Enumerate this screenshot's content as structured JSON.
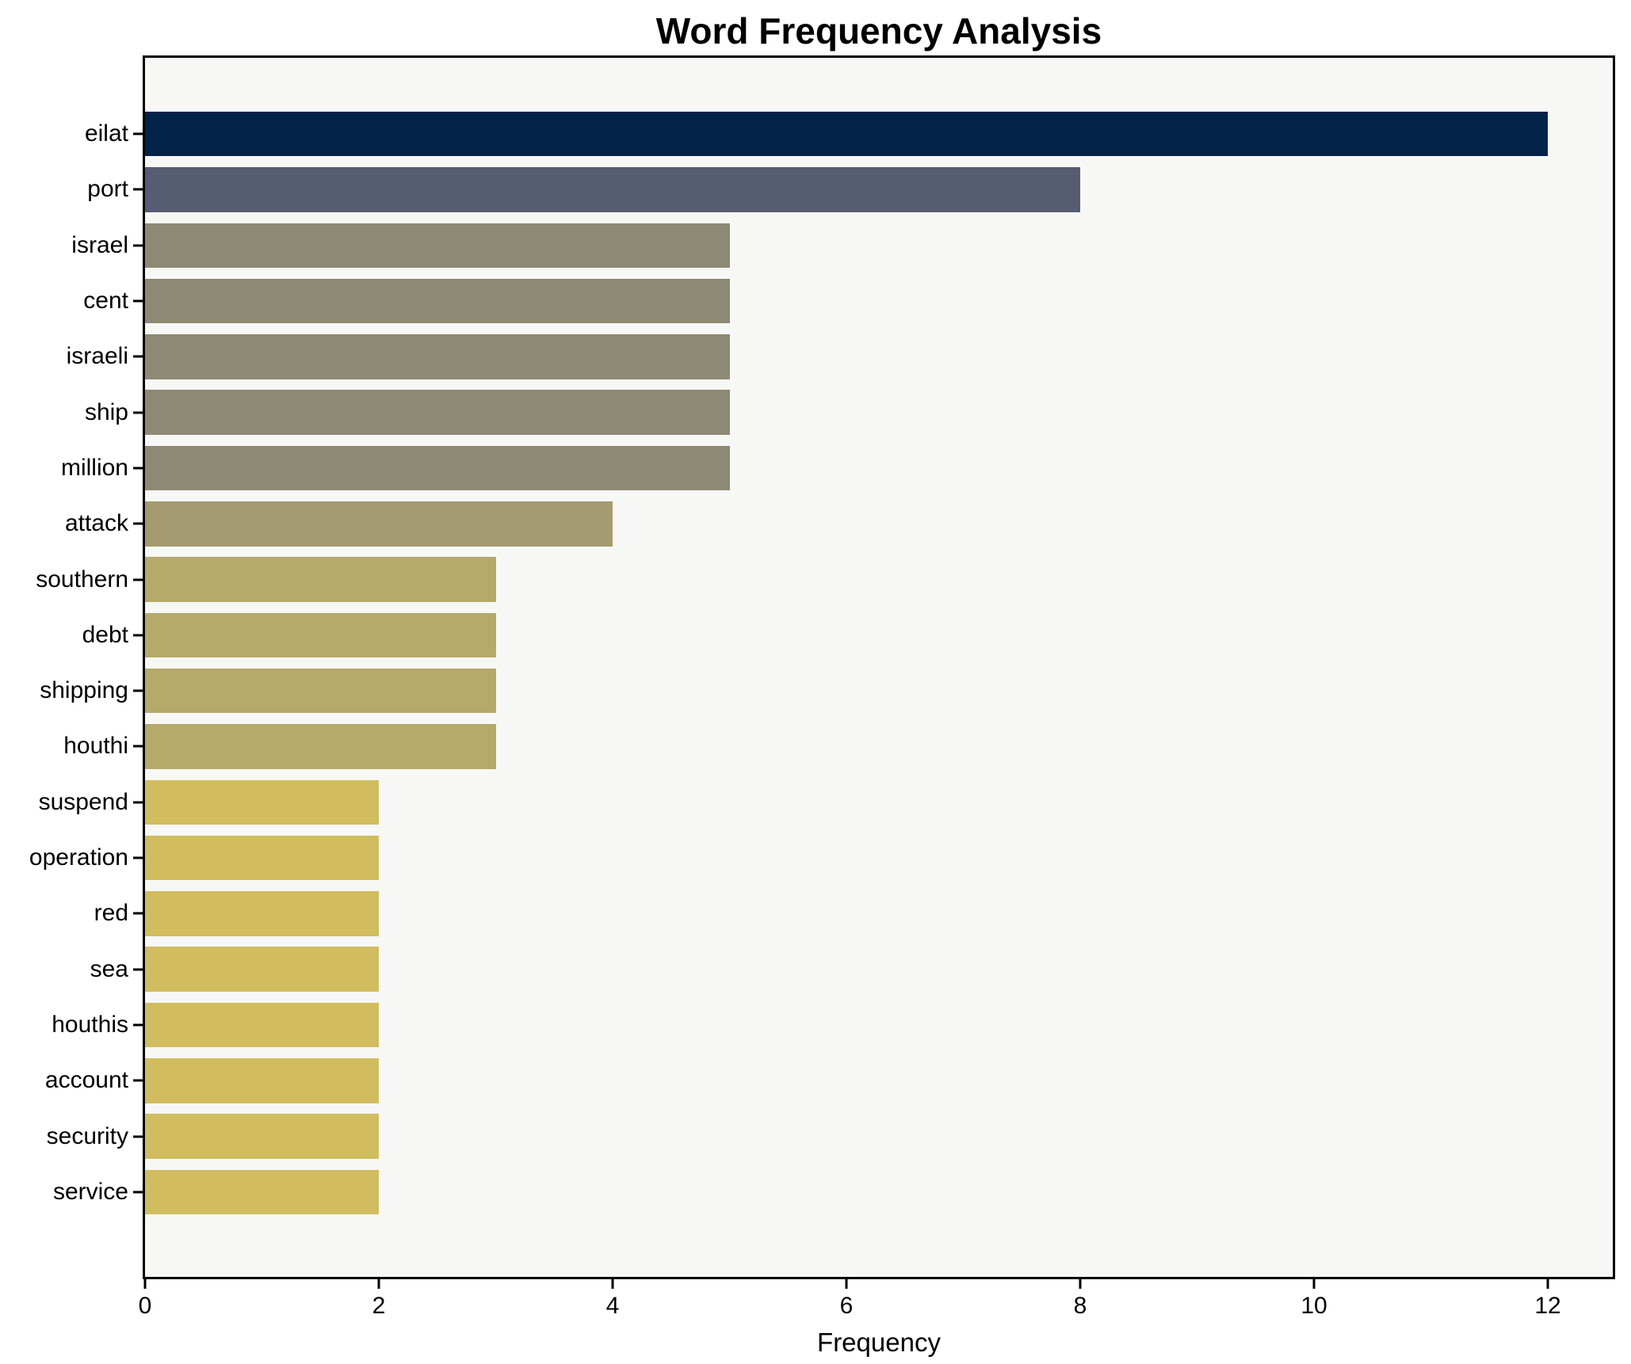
{
  "chart_data": {
    "type": "bar",
    "orientation": "horizontal",
    "title": "Word Frequency Analysis",
    "xlabel": "Frequency",
    "ylabel": "",
    "xlim": [
      0,
      12.6
    ],
    "x_ticks": [
      0,
      2,
      4,
      6,
      8,
      10,
      12
    ],
    "grid": false,
    "legend": null,
    "plot_background": "#f7f7f5",
    "figure_background": "#ffffff",
    "spine_color": "#000000",
    "categories": [
      "eilat",
      "port",
      "israel",
      "cent",
      "israeli",
      "ship",
      "million",
      "attack",
      "southern",
      "debt",
      "shipping",
      "houthi",
      "suspend",
      "operation",
      "red",
      "sea",
      "houthis",
      "account",
      "security",
      "service"
    ],
    "values": [
      12,
      8,
      5,
      5,
      5,
      5,
      5,
      4,
      3,
      3,
      3,
      3,
      2,
      2,
      2,
      2,
      2,
      2,
      2,
      2
    ],
    "bar_colors": [
      "#032349",
      "#565d72",
      "#8e8974",
      "#8e8974",
      "#8e8974",
      "#8e8974",
      "#8e8974",
      "#a49b70",
      "#b5a96c",
      "#b5a96c",
      "#b5a96c",
      "#b5a96c",
      "#d1bd5f",
      "#d1bd5f",
      "#d1bd5f",
      "#d1bd5f",
      "#d1bd5f",
      "#d1bd5f",
      "#d1bd5f",
      "#d1bd5f"
    ],
    "color_by_value": {
      "12": "#032349",
      "8": "#565d72",
      "5": "#8e8974",
      "4": "#a49b70",
      "3": "#b5a96c",
      "2": "#d1bd5f"
    }
  }
}
